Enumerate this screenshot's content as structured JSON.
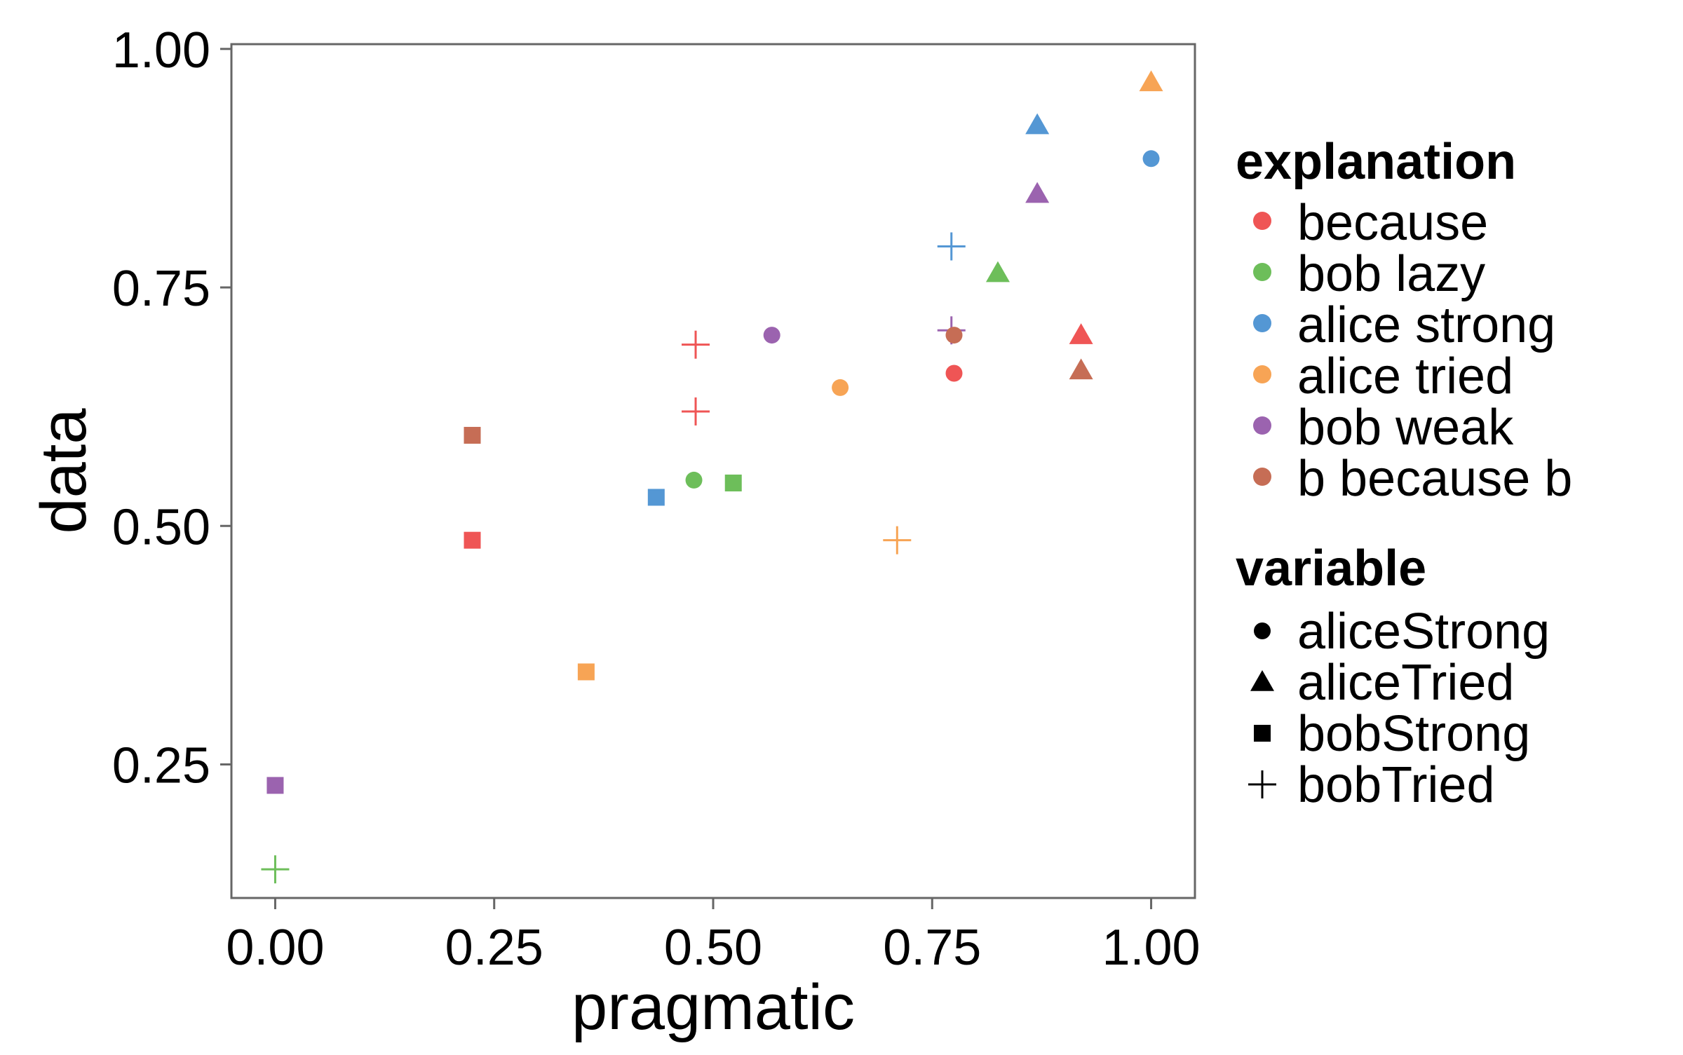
{
  "chart_data": {
    "type": "scatter",
    "title": "",
    "xlabel": "pragmatic",
    "ylabel": "data",
    "xlim": [
      -0.05,
      1.05
    ],
    "ylim": [
      0.11,
      1.005
    ],
    "x_ticks": [
      0.0,
      0.25,
      0.5,
      0.75,
      1.0
    ],
    "x_tick_labels": [
      "0.00",
      "0.25",
      "0.50",
      "0.75",
      "1.00"
    ],
    "y_ticks": [
      0.25,
      0.5,
      0.75,
      1.0
    ],
    "y_tick_labels": [
      "0.25",
      "0.50",
      "0.75",
      "1.00"
    ],
    "grid": false,
    "legend_position": "right",
    "color_legend": {
      "title": "explanation",
      "entries": [
        {
          "label": "because",
          "color": "#EF5555"
        },
        {
          "label": "bob lazy",
          "color": "#6DBE5A"
        },
        {
          "label": "alice strong",
          "color": "#5497D4"
        },
        {
          "label": "alice tried",
          "color": "#F7A455"
        },
        {
          "label": "bob weak",
          "color": "#9B63AF"
        },
        {
          "label": "b because b",
          "color": "#C66D55"
        }
      ]
    },
    "shape_legend": {
      "title": "variable",
      "entries": [
        {
          "label": "aliceStrong",
          "shape": "circle"
        },
        {
          "label": "aliceTried",
          "shape": "triangle"
        },
        {
          "label": "bobStrong",
          "shape": "square"
        },
        {
          "label": "bobTried",
          "shape": "plus"
        }
      ]
    },
    "points": [
      {
        "explanation": "because",
        "variable": "aliceStrong",
        "x": 0.775,
        "y": 0.66
      },
      {
        "explanation": "because",
        "variable": "aliceTried",
        "x": 0.92,
        "y": 0.7
      },
      {
        "explanation": "because",
        "variable": "bobStrong",
        "x": 0.225,
        "y": 0.485
      },
      {
        "explanation": "because",
        "variable": "bobTried",
        "x": 0.48,
        "y": 0.69
      },
      {
        "explanation": "because",
        "variable": "bobTried",
        "x": 0.48,
        "y": 0.62
      },
      {
        "explanation": "bob lazy",
        "variable": "aliceStrong",
        "x": 0.478,
        "y": 0.548
      },
      {
        "explanation": "bob lazy",
        "variable": "aliceTried",
        "x": 0.825,
        "y": 0.765
      },
      {
        "explanation": "bob lazy",
        "variable": "bobStrong",
        "x": 0.523,
        "y": 0.545
      },
      {
        "explanation": "bob lazy",
        "variable": "bobTried",
        "x": 0.0,
        "y": 0.14
      },
      {
        "explanation": "alice strong",
        "variable": "aliceStrong",
        "x": 1.0,
        "y": 0.885
      },
      {
        "explanation": "alice strong",
        "variable": "aliceTried",
        "x": 0.87,
        "y": 0.92
      },
      {
        "explanation": "alice strong",
        "variable": "bobStrong",
        "x": 0.435,
        "y": 0.53
      },
      {
        "explanation": "alice strong",
        "variable": "bobTried",
        "x": 0.772,
        "y": 0.793
      },
      {
        "explanation": "alice tried",
        "variable": "aliceStrong",
        "x": 0.645,
        "y": 0.645
      },
      {
        "explanation": "alice tried",
        "variable": "aliceTried",
        "x": 1.0,
        "y": 0.965
      },
      {
        "explanation": "alice tried",
        "variable": "bobStrong",
        "x": 0.355,
        "y": 0.347
      },
      {
        "explanation": "alice tried",
        "variable": "bobTried",
        "x": 0.71,
        "y": 0.485
      },
      {
        "explanation": "bob weak",
        "variable": "aliceStrong",
        "x": 0.567,
        "y": 0.7
      },
      {
        "explanation": "bob weak",
        "variable": "aliceTried",
        "x": 0.87,
        "y": 0.848
      },
      {
        "explanation": "bob weak",
        "variable": "bobStrong",
        "x": 0.0,
        "y": 0.228
      },
      {
        "explanation": "bob weak",
        "variable": "bobTried",
        "x": 0.772,
        "y": 0.705
      },
      {
        "explanation": "b because b",
        "variable": "aliceStrong",
        "x": 0.775,
        "y": 0.7
      },
      {
        "explanation": "b because b",
        "variable": "aliceTried",
        "x": 0.92,
        "y": 0.663
      },
      {
        "explanation": "b because b",
        "variable": "bobStrong",
        "x": 0.225,
        "y": 0.595
      }
    ]
  }
}
